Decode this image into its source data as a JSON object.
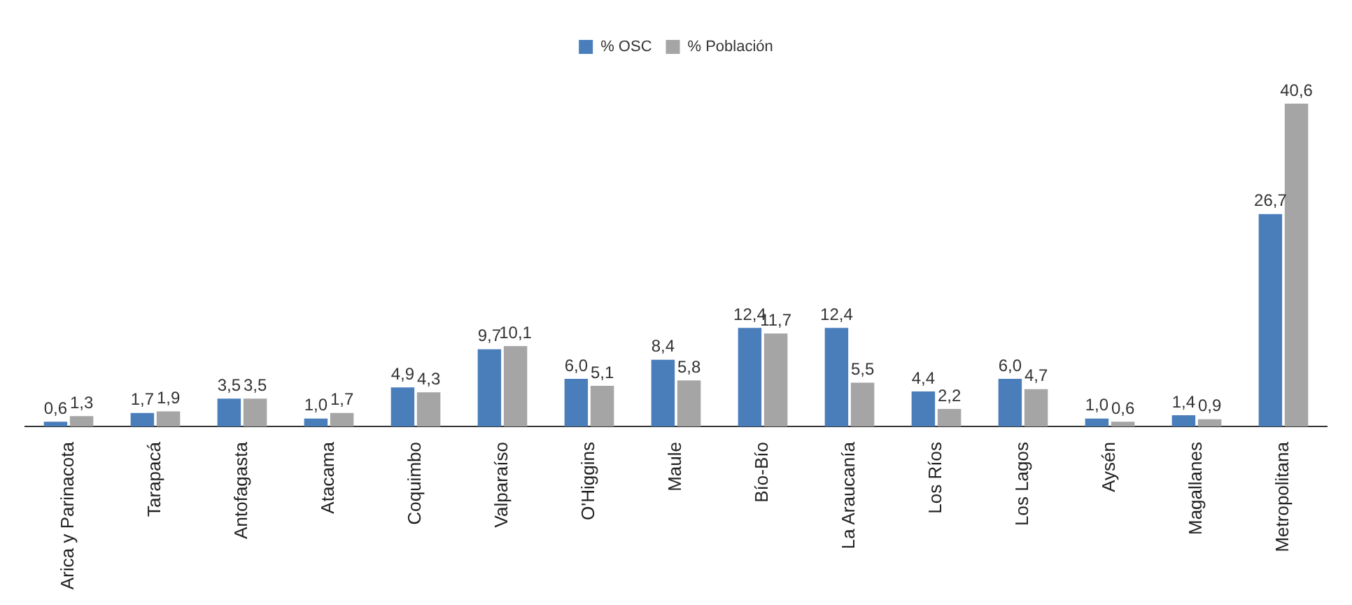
{
  "chart_data": {
    "type": "bar",
    "categories": [
      "Arica y Parinacota",
      "Tarapacá",
      "Antofagasta",
      "Atacama",
      "Coquimbo",
      "Valparaíso",
      "O'Higgins",
      "Maule",
      "Bío-Bío",
      "La Araucanía",
      "Los Ríos",
      "Los Lagos",
      "Aysén",
      "Magallanes",
      "Metropolitana"
    ],
    "series": [
      {
        "name": "% OSC",
        "color": "#4a7ebb",
        "values": [
          0.6,
          1.7,
          3.5,
          1.0,
          4.9,
          9.7,
          6.0,
          8.4,
          12.4,
          12.4,
          4.4,
          6.0,
          1.0,
          1.4,
          26.7
        ],
        "value_labels": [
          "0,6",
          "1,7",
          "3,5",
          "1,0",
          "4,9",
          "9,7",
          "6,0",
          "8,4",
          "12,4",
          "12,4",
          "4,4",
          "6,0",
          "1,0",
          "1,4",
          "26,7"
        ]
      },
      {
        "name": "% Población",
        "color": "#a5a5a5",
        "values": [
          1.3,
          1.9,
          3.5,
          1.7,
          4.3,
          10.1,
          5.1,
          5.8,
          11.7,
          5.5,
          2.2,
          4.7,
          0.6,
          0.9,
          40.6
        ],
        "value_labels": [
          "1,3",
          "1,9",
          "3,5",
          "1,7",
          "4,3",
          "10,1",
          "5,1",
          "5,8",
          "11,7",
          "5,5",
          "2,2",
          "4,7",
          "0,6",
          "0,9",
          "40,6"
        ]
      }
    ],
    "legend": "top",
    "grid": false
  }
}
